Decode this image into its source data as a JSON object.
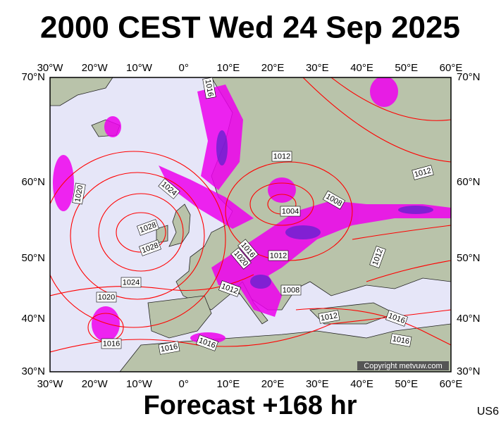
{
  "header": {
    "title": "2000 CEST Wed 24 Sep 2025"
  },
  "map": {
    "lon_labels": [
      "30°W",
      "20°W",
      "10°W",
      "0°",
      "10°E",
      "20°E",
      "30°E",
      "40°E",
      "50°E",
      "60°E"
    ],
    "lat_labels": [
      "70°N",
      "60°N",
      "50°N",
      "40°N",
      "30°N"
    ],
    "isobar_labels": [
      "1016",
      "1012",
      "1012",
      "1024",
      "1020",
      "1008",
      "1004",
      "1028",
      "1028",
      "1016",
      "1020",
      "1012",
      "1012",
      "1024",
      "1012",
      "1008",
      "1020",
      "1012",
      "1016",
      "1016",
      "1016",
      "1016",
      "1016"
    ],
    "copyright": "Copyright metvuw.com"
  },
  "footer": {
    "forecast": "Forecast +168 hr",
    "model": "US6"
  }
}
